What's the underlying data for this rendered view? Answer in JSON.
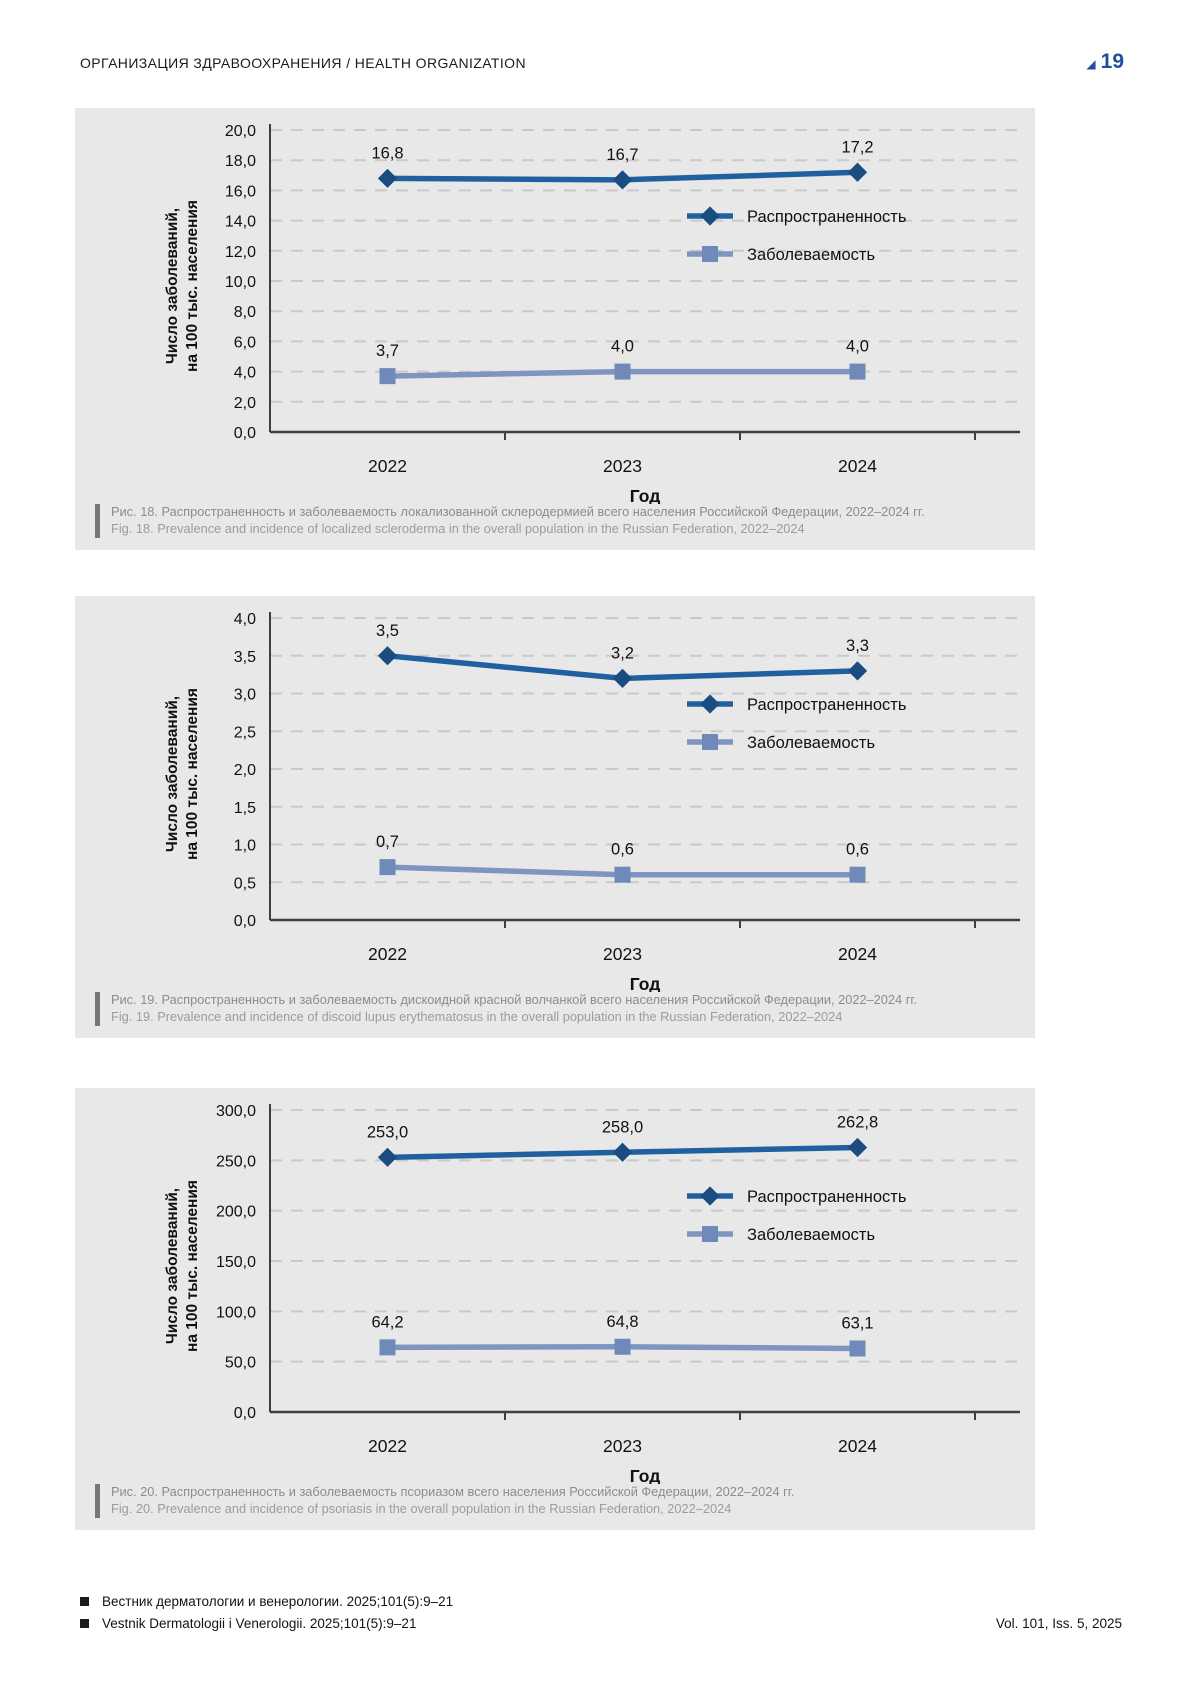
{
  "header": {
    "section_title": "ОРГАНИЗАЦИЯ ЗДРАВООХРАНЕНИЯ / HEALTH ORGANIZATION",
    "page_number": "19",
    "triangle_icon": "◢"
  },
  "colors": {
    "accent_blue": "#1d4f9e",
    "prevalence_line": "#20609f",
    "prevalence_marker": "#1a4c80",
    "incidence_line": "#7e95c2",
    "incidence_marker": "#6f89b8",
    "panel_bg": "#e8e8e8",
    "grid": "#c9c9c9",
    "axis": "#3f3f3f"
  },
  "axis": {
    "ylabel_line1": "Число заболеваний,",
    "ylabel_line2": "на 100 тыс. населения",
    "xlabel": "Год"
  },
  "chart_data": [
    {
      "type": "line",
      "xtick_labels": [
        "2022",
        "2023",
        "2024"
      ],
      "ylim": [
        0,
        20
      ],
      "ytick_step": 2,
      "ytick_labels": [
        "0,0",
        "2,0",
        "4,0",
        "6,0",
        "8,0",
        "10,0",
        "12,0",
        "14,0",
        "16,0",
        "18,0",
        "20,0"
      ],
      "series": [
        {
          "name": "Распространенность",
          "marker": "diamond",
          "values": [
            16.8,
            16.7,
            17.2
          ]
        },
        {
          "name": "Заболеваемость",
          "marker": "square",
          "values": [
            3.7,
            4.0,
            4.0
          ]
        }
      ],
      "value_labels": [
        [
          "16,8",
          "16,7",
          "17,2"
        ],
        [
          "3,7",
          "4,0",
          "4,0"
        ]
      ],
      "xlabel": "Год",
      "grid": "dashed",
      "legend_position": "right-inside",
      "caption_ru": "Рис. 18. Распространенность и заболеваемость локализованной склеродермией всего населения Российской Федерации, 2022–2024 гг.",
      "caption_en": "Fig. 18. Prevalence and incidence of localized scleroderma in the overall population in the Russian Federation, 2022–2024"
    },
    {
      "type": "line",
      "xtick_labels": [
        "2022",
        "2023",
        "2024"
      ],
      "ylim": [
        0,
        4
      ],
      "ytick_step": 0.5,
      "ytick_labels": [
        "0,0",
        "0,5",
        "1,0",
        "1,5",
        "2,0",
        "2,5",
        "3,0",
        "3,5",
        "4,0"
      ],
      "series": [
        {
          "name": "Распространенность",
          "marker": "diamond",
          "values": [
            3.5,
            3.2,
            3.3
          ]
        },
        {
          "name": "Заболеваемость",
          "marker": "square",
          "values": [
            0.7,
            0.6,
            0.6
          ]
        }
      ],
      "value_labels": [
        [
          "3,5",
          "3,2",
          "3,3"
        ],
        [
          "0,7",
          "0,6",
          "0,6"
        ]
      ],
      "xlabel": "Год",
      "grid": "dashed",
      "legend_position": "right-inside",
      "caption_ru": "Рис. 19. Распространенность и заболеваемость дискоидной красной волчанкой всего населения Российской Федерации, 2022–2024 гг.",
      "caption_en": "Fig. 19. Prevalence and incidence of discoid lupus erythematosus in the overall population in the Russian Federation, 2022–2024"
    },
    {
      "type": "line",
      "xtick_labels": [
        "2022",
        "2023",
        "2024"
      ],
      "ylim": [
        0,
        300
      ],
      "ytick_step": 50,
      "ytick_labels": [
        "0,0",
        "50,0",
        "100,0",
        "150,0",
        "200,0",
        "250,0",
        "300,0"
      ],
      "series": [
        {
          "name": "Распространенность",
          "marker": "diamond",
          "values": [
            253.0,
            258.0,
            262.8
          ]
        },
        {
          "name": "Заболеваемость",
          "marker": "square",
          "values": [
            64.2,
            64.8,
            63.1
          ]
        }
      ],
      "value_labels": [
        [
          "253,0",
          "258,0",
          "262,8"
        ],
        [
          "64,2",
          "64,8",
          "63,1"
        ]
      ],
      "xlabel": "Год",
      "grid": "dashed",
      "legend_position": "right-inside",
      "caption_ru": "Рис. 20. Распространенность и заболеваемость псориазом всего населения Российской Федерации, 2022–2024 гг.",
      "caption_en": "Fig. 20. Prevalence and incidence of psoriasis in the overall population in the Russian Federation, 2022–2024"
    }
  ],
  "footer": {
    "line_ru": "Вестник дерматологии и венерологии. 2025;101(5):9–21",
    "line_en": "Vestnik Dermatologii i Venerologii. 2025;101(5):9–21",
    "right": "Vol. 101, Iss. 5, 2025"
  }
}
